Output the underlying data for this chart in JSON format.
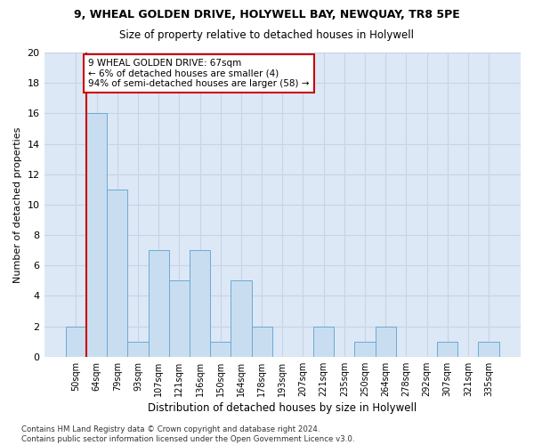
{
  "title1": "9, WHEAL GOLDEN DRIVE, HOLYWELL BAY, NEWQUAY, TR8 5PE",
  "title2": "Size of property relative to detached houses in Holywell",
  "xlabel": "Distribution of detached houses by size in Holywell",
  "ylabel": "Number of detached properties",
  "categories": [
    "50sqm",
    "64sqm",
    "79sqm",
    "93sqm",
    "107sqm",
    "121sqm",
    "136sqm",
    "150sqm",
    "164sqm",
    "178sqm",
    "193sqm",
    "207sqm",
    "221sqm",
    "235sqm",
    "250sqm",
    "264sqm",
    "278sqm",
    "292sqm",
    "307sqm",
    "321sqm",
    "335sqm"
  ],
  "values": [
    2,
    16,
    11,
    1,
    7,
    5,
    7,
    1,
    5,
    2,
    0,
    0,
    2,
    0,
    1,
    2,
    0,
    0,
    1,
    0,
    1
  ],
  "bar_color": "#c9ddf0",
  "bar_edge_color": "#6aaad4",
  "highlight_bar_index": 1,
  "highlight_color": "#cc0000",
  "annotation_text": "9 WHEAL GOLDEN DRIVE: 67sqm\n← 6% of detached houses are smaller (4)\n94% of semi-detached houses are larger (58) →",
  "annotation_box_color": "#ffffff",
  "annotation_box_edge_color": "#cc0000",
  "ylim": [
    0,
    20
  ],
  "yticks": [
    0,
    2,
    4,
    6,
    8,
    10,
    12,
    14,
    16,
    18,
    20
  ],
  "grid_color": "#c8d4e8",
  "bg_color": "#dce8f5",
  "footnote": "Contains HM Land Registry data © Crown copyright and database right 2024.\nContains public sector information licensed under the Open Government Licence v3.0."
}
